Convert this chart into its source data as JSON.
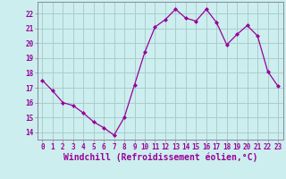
{
  "x": [
    0,
    1,
    2,
    3,
    4,
    5,
    6,
    7,
    8,
    9,
    10,
    11,
    12,
    13,
    14,
    15,
    16,
    17,
    18,
    19,
    20,
    21,
    22,
    23
  ],
  "y": [
    17.5,
    16.8,
    16.0,
    15.8,
    15.3,
    14.7,
    14.3,
    13.8,
    15.0,
    17.2,
    19.4,
    21.1,
    21.6,
    22.3,
    21.7,
    21.5,
    22.3,
    21.4,
    19.9,
    20.6,
    21.2,
    20.5,
    18.1,
    17.1
  ],
  "line_color": "#990099",
  "marker": "D",
  "marker_size": 2.0,
  "bg_color": "#cceeee",
  "grid_color": "#aacccc",
  "xlabel": "Windchill (Refroidissement éolien,°C)",
  "ylim": [
    13.5,
    22.8
  ],
  "xlim": [
    -0.5,
    23.5
  ],
  "yticks": [
    14,
    15,
    16,
    17,
    18,
    19,
    20,
    21,
    22
  ],
  "xticks": [
    0,
    1,
    2,
    3,
    4,
    5,
    6,
    7,
    8,
    9,
    10,
    11,
    12,
    13,
    14,
    15,
    16,
    17,
    18,
    19,
    20,
    21,
    22,
    23
  ],
  "tick_fontsize": 5.5,
  "label_fontsize": 7.0,
  "spine_color": "#888899",
  "linewidth": 0.9
}
